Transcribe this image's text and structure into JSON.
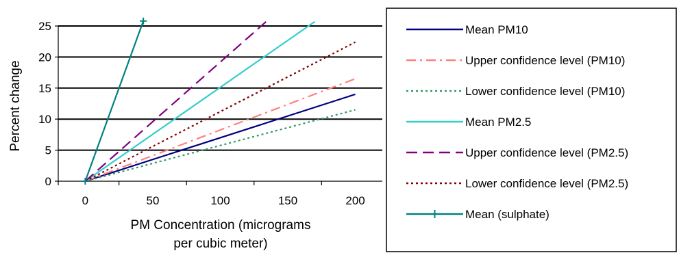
{
  "chart_data": {
    "type": "line",
    "title": "",
    "xlabel_lines": [
      "PM Concentration (micrograms",
      "per cubic meter)"
    ],
    "ylabel": "Percent change",
    "xlim": [
      -20,
      220
    ],
    "ylim": [
      0,
      25
    ],
    "x_ticks": [
      0,
      50,
      100,
      150,
      200
    ],
    "x_tick_labels": [
      "0",
      "50",
      "100",
      "150",
      "200"
    ],
    "y_ticks": [
      0,
      5,
      10,
      15,
      20,
      25
    ],
    "y_tick_labels": [
      "0",
      "5",
      "10",
      "15",
      "20",
      "25"
    ],
    "grid": "horizontal",
    "legend_position": "right",
    "series": [
      {
        "name": "Mean PM10",
        "color": "#000080",
        "dash": "solid",
        "marker": "none",
        "x": [
          0,
          200
        ],
        "y": [
          0,
          14
        ]
      },
      {
        "name": "Upper confidence level (PM10)",
        "color": "#ff8080",
        "dash": "dashdot",
        "marker": "none",
        "x": [
          0,
          200
        ],
        "y": [
          0,
          16.5
        ]
      },
      {
        "name": "Lower confidence level (PM10)",
        "color": "#339966",
        "dash": "dotted",
        "marker": "none",
        "x": [
          0,
          200
        ],
        "y": [
          0,
          11.5
        ]
      },
      {
        "name": "Mean PM2.5",
        "color": "#33cccc",
        "dash": "solid",
        "marker": "none",
        "x": [
          0,
          170
        ],
        "y": [
          0,
          25.7
        ]
      },
      {
        "name": "Upper confidence level (PM2.5)",
        "color": "#800080",
        "dash": "dash",
        "marker": "none",
        "x": [
          0,
          135
        ],
        "y": [
          0,
          25.9
        ]
      },
      {
        "name": "Lower confidence level (PM2.5)",
        "color": "#800000",
        "dash": "dotted",
        "marker": "none",
        "x": [
          0,
          200
        ],
        "y": [
          0,
          22.4
        ]
      },
      {
        "name": "Mean (sulphate)",
        "color": "#008080",
        "dash": "solid",
        "marker": "plus",
        "x": [
          0,
          43
        ],
        "y": [
          0,
          25.8
        ]
      }
    ]
  }
}
